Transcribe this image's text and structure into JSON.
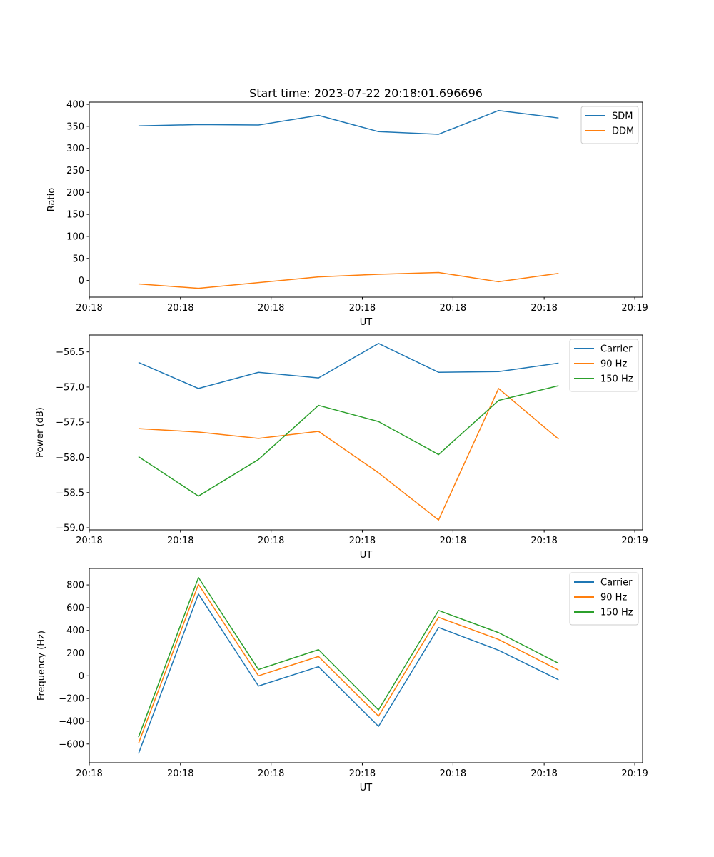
{
  "title": "Start time: 2023-07-22 20:18:01.696696",
  "chart_data": [
    {
      "type": "line",
      "title": "Start time: 2023-07-22 20:18:01.696696",
      "xlabel": "UT",
      "ylabel": "Ratio",
      "x": [
        1,
        2,
        3,
        4,
        5,
        6,
        7,
        8
      ],
      "xlim": [
        0.18,
        9.4
      ],
      "ylim": [
        -38,
        405
      ],
      "yticks": [
        0,
        50,
        100,
        150,
        200,
        250,
        300,
        350,
        400
      ],
      "xtick_values": [
        0.18,
        1.7,
        3.21,
        4.73,
        6.24,
        7.76,
        9.27
      ],
      "xtick_labels": [
        "20:18",
        "20:18",
        "20:18",
        "20:18",
        "20:18",
        "20:18",
        "20:19"
      ],
      "legend": "top-right",
      "series": [
        {
          "name": "SDM",
          "color": "#1f77b4",
          "values": [
            351,
            354,
            353,
            375,
            338,
            332,
            386,
            369
          ]
        },
        {
          "name": "DDM",
          "color": "#ff7f0e",
          "values": [
            -8,
            -18,
            -5,
            8,
            14,
            18,
            -3,
            16
          ]
        }
      ]
    },
    {
      "type": "line",
      "xlabel": "UT",
      "ylabel": "Power (dB)",
      "x": [
        1,
        2,
        3,
        4,
        5,
        6,
        7,
        8
      ],
      "xlim": [
        0.18,
        9.4
      ],
      "ylim": [
        -59.03,
        -56.26
      ],
      "yticks": [
        -59.0,
        -58.5,
        -58.0,
        -57.5,
        -57.0,
        -56.5
      ],
      "ytick_labels": [
        "−59.0",
        "−58.5",
        "−58.0",
        "−57.5",
        "−57.0",
        "−56.5"
      ],
      "xtick_values": [
        0.18,
        1.7,
        3.21,
        4.73,
        6.24,
        7.76,
        9.27
      ],
      "xtick_labels": [
        "20:18",
        "20:18",
        "20:18",
        "20:18",
        "20:18",
        "20:18",
        "20:19"
      ],
      "legend": "top-right",
      "series": [
        {
          "name": "Carrier",
          "color": "#1f77b4",
          "values": [
            -56.65,
            -57.02,
            -56.79,
            -56.87,
            -56.38,
            -56.79,
            -56.78,
            -56.66
          ]
        },
        {
          "name": "90 Hz",
          "color": "#ff7f0e",
          "values": [
            -57.59,
            -57.64,
            -57.73,
            -57.63,
            -58.22,
            -58.89,
            -57.02,
            -57.74
          ]
        },
        {
          "name": "150 Hz",
          "color": "#2ca02c",
          "values": [
            -57.99,
            -58.55,
            -58.03,
            -57.26,
            -57.49,
            -57.96,
            -57.19,
            -56.98
          ]
        }
      ]
    },
    {
      "type": "line",
      "xlabel": "UT",
      "ylabel": "Frequency (Hz)",
      "x": [
        1,
        2,
        3,
        4,
        5,
        6,
        7,
        8
      ],
      "xlim": [
        0.18,
        9.4
      ],
      "ylim": [
        -765,
        945
      ],
      "yticks": [
        -600,
        -400,
        -200,
        0,
        200,
        400,
        600,
        800
      ],
      "ytick_labels": [
        "−600",
        "−400",
        "−200",
        "0",
        "200",
        "400",
        "600",
        "800"
      ],
      "xtick_values": [
        0.18,
        1.7,
        3.21,
        4.73,
        6.24,
        7.76,
        9.27
      ],
      "xtick_labels": [
        "20:18",
        "20:18",
        "20:18",
        "20:18",
        "20:18",
        "20:18",
        "20:19"
      ],
      "legend": "top-right",
      "series": [
        {
          "name": "Carrier",
          "color": "#1f77b4",
          "values": [
            -685,
            720,
            -90,
            80,
            -445,
            425,
            225,
            -35
          ]
        },
        {
          "name": "90 Hz",
          "color": "#ff7f0e",
          "values": [
            -595,
            805,
            0,
            170,
            -355,
            515,
            320,
            50
          ]
        },
        {
          "name": "150 Hz",
          "color": "#2ca02c",
          "values": [
            -540,
            865,
            55,
            230,
            -300,
            575,
            380,
            110
          ]
        }
      ]
    }
  ]
}
